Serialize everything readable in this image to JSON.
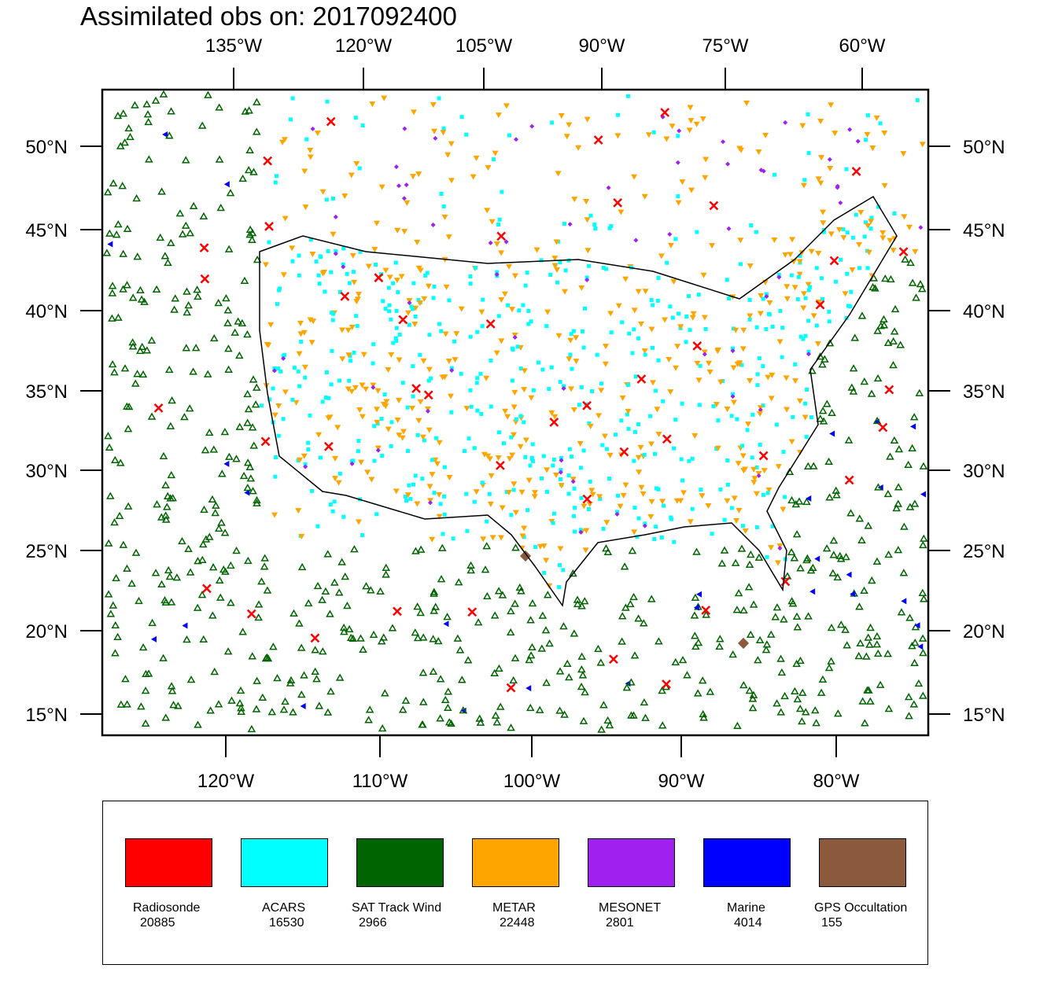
{
  "title": "Assimilated obs on: 2017092400",
  "top_lon_ticks": [
    "135°W",
    "120°W",
    "105°W",
    "90°W",
    "75°W",
    "60°W"
  ],
  "bottom_lon_ticks": [
    "120°W",
    "110°W",
    "100°W",
    "90°W",
    "80°W"
  ],
  "lat_ticks": [
    "50°N",
    "45°N",
    "40°N",
    "35°N",
    "30°N",
    "25°N",
    "20°N",
    "15°N"
  ],
  "legend": [
    {
      "name": "Radiosonde",
      "count": "20885",
      "color": "#ff0000"
    },
    {
      "name": "ACARS",
      "count": "16530",
      "color": "#00ffff"
    },
    {
      "name": "SAT Track Wind",
      "count": "2966",
      "color": "#006400"
    },
    {
      "name": "METAR",
      "count": "22448",
      "color": "#ffa500"
    },
    {
      "name": "MESONET",
      "count": "2801",
      "color": "#a020f0"
    },
    {
      "name": "Marine",
      "count": "4014",
      "color": "#0000ff"
    },
    {
      "name": "GPS Occultation",
      "count": "155",
      "color": "#8b5a3c"
    }
  ]
}
